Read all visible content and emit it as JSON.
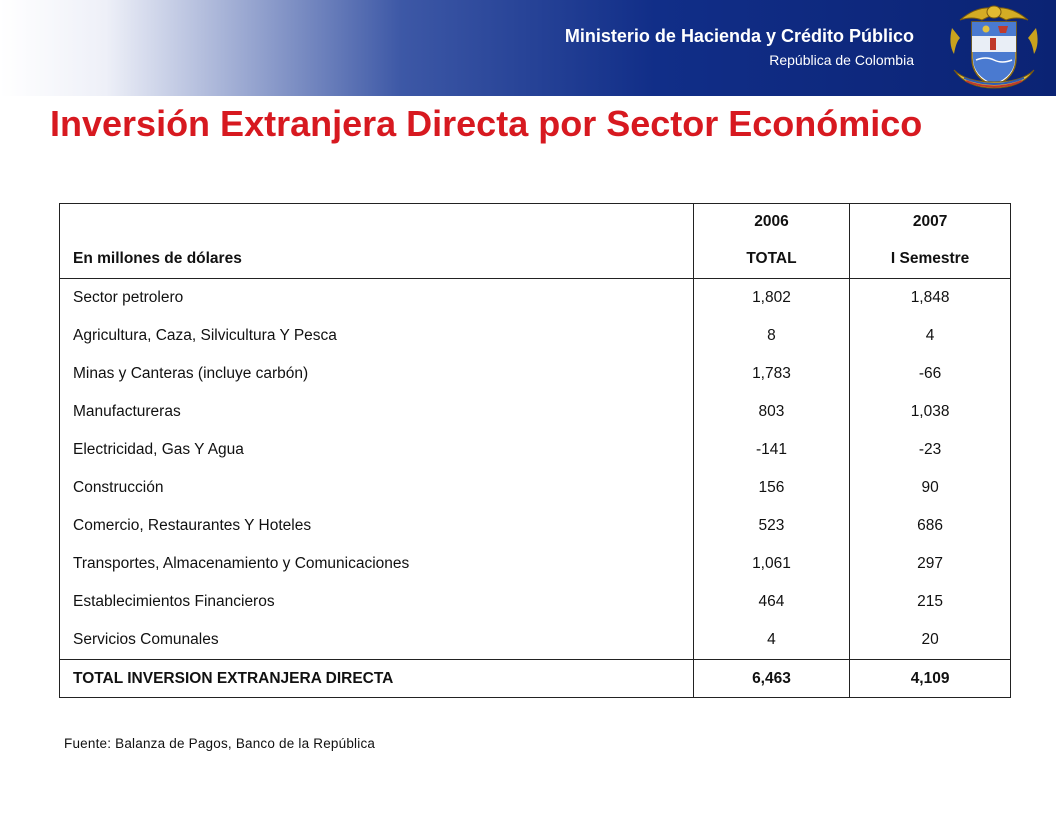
{
  "header": {
    "ministry": "Ministerio de Hacienda y Crédito Público",
    "country": "República de Colombia",
    "crest_icon": "coat-of-arms-colombia"
  },
  "title": "Inversión Extranjera Directa por Sector Económico",
  "table": {
    "header_year_a": "2006",
    "header_year_b": "2007",
    "header_label": "En millones de dólares",
    "header_sub_a": "TOTAL",
    "header_sub_b": "I Semestre",
    "rows": [
      {
        "sector": "Sector petrolero",
        "v2006": "1,802",
        "v2007": "1,848"
      },
      {
        "sector": "Agricultura, Caza, Silvicultura Y Pesca",
        "v2006": "8",
        "v2007": "4"
      },
      {
        "sector": "Minas y Canteras (incluye carbón)",
        "v2006": "1,783",
        "v2007": "-66"
      },
      {
        "sector": "Manufactureras",
        "v2006": "803",
        "v2007": "1,038"
      },
      {
        "sector": "Electricidad, Gas Y Agua",
        "v2006": "-141",
        "v2007": "-23"
      },
      {
        "sector": "Construcción",
        "v2006": "156",
        "v2007": "90"
      },
      {
        "sector": "Comercio, Restaurantes Y Hoteles",
        "v2006": "523",
        "v2007": "686"
      },
      {
        "sector": "Transportes, Almacenamiento y Comunicaciones",
        "v2006": "1,061",
        "v2007": "297"
      },
      {
        "sector": "Establecimientos Financieros",
        "v2006": "464",
        "v2007": "215"
      },
      {
        "sector": "Servicios Comunales",
        "v2006": "4",
        "v2007": "20"
      }
    ],
    "total": {
      "label": "TOTAL INVERSION EXTRANJERA DIRECTA",
      "v2006": "6,463",
      "v2007": "4,109"
    }
  },
  "source": "Fuente: Balanza de Pagos, Banco de la República",
  "colors": {
    "title": "#d71920",
    "header_blue": "#0b2374",
    "text": "#111111"
  }
}
